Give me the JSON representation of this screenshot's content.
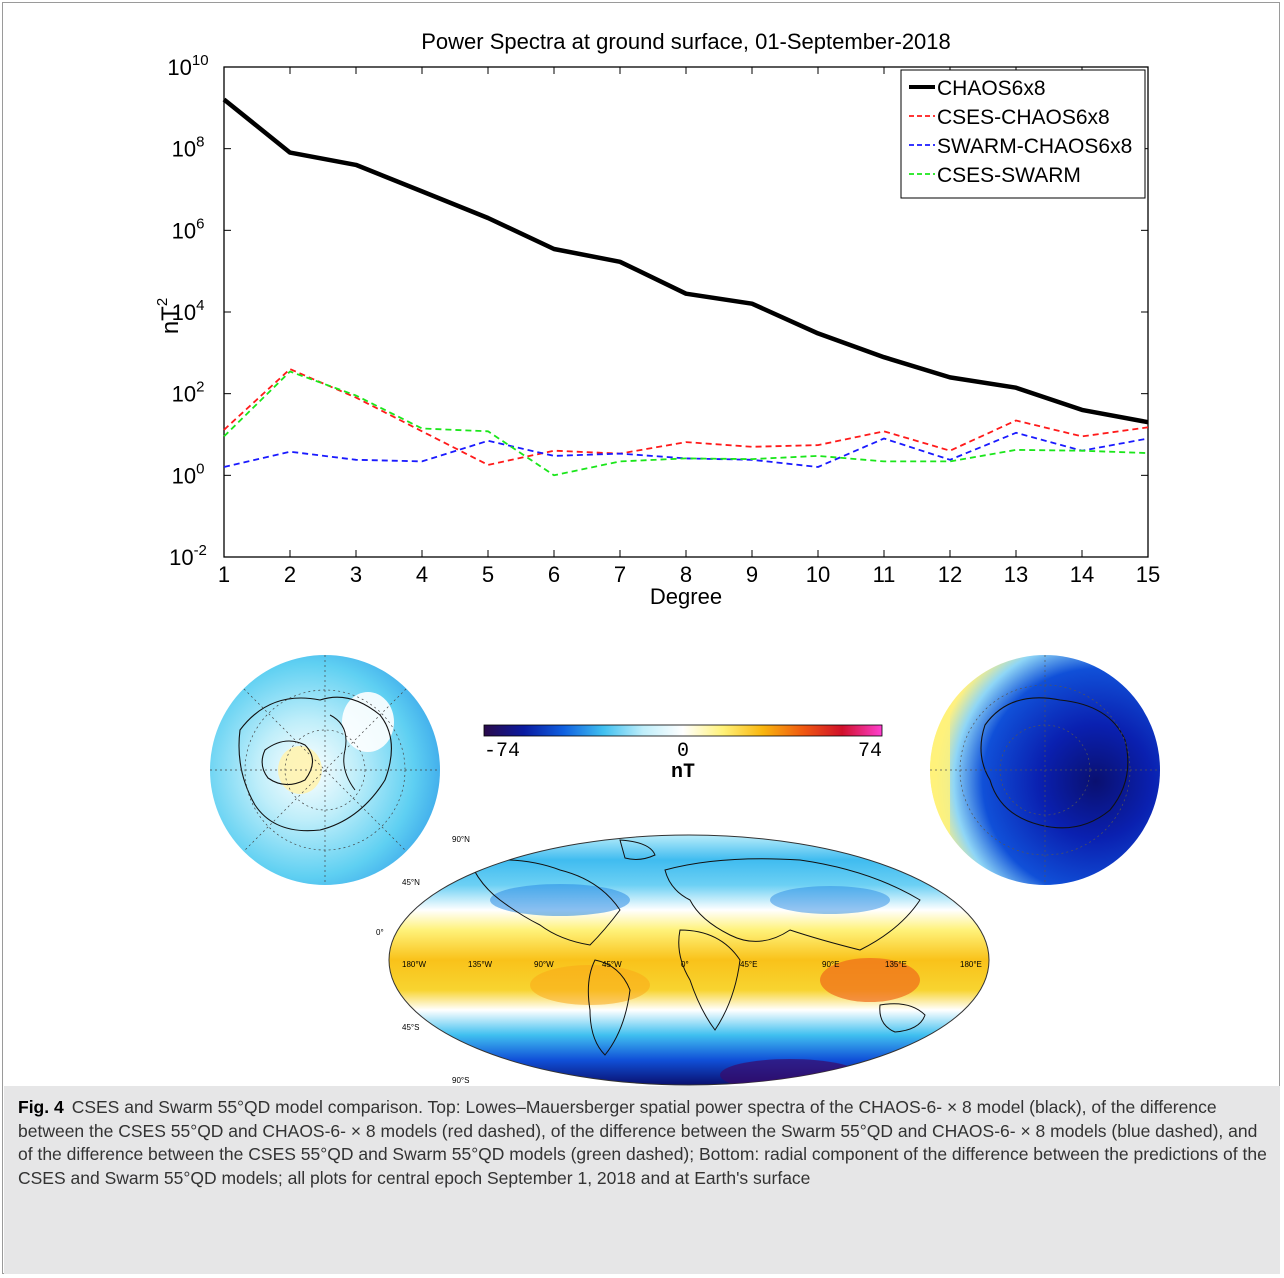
{
  "chart_data": [
    {
      "type": "line",
      "title": "Power Spectra at ground surface, 01-September-2018",
      "xlabel": "Degree",
      "ylabel": "nT",
      "ylabel_sup": "2",
      "y_scale": "log",
      "xlim": [
        1,
        15
      ],
      "ylim": [
        0.01,
        10000000000
      ],
      "x": [
        1,
        2,
        3,
        4,
        5,
        6,
        7,
        8,
        9,
        10,
        11,
        12,
        13,
        14,
        15
      ],
      "x_ticks": [
        "1",
        "2",
        "3",
        "4",
        "5",
        "6",
        "7",
        "8",
        "9",
        "10",
        "11",
        "12",
        "13",
        "14",
        "15"
      ],
      "y_ticks": [
        {
          "base": "10",
          "exp": "-2",
          "value": 0.01
        },
        {
          "base": "10",
          "exp": "0",
          "value": 1
        },
        {
          "base": "10",
          "exp": "2",
          "value": 100
        },
        {
          "base": "10",
          "exp": "4",
          "value": 10000
        },
        {
          "base": "10",
          "exp": "6",
          "value": 1000000
        },
        {
          "base": "10",
          "exp": "8",
          "value": 100000000
        },
        {
          "base": "10",
          "exp": "10",
          "value": 10000000000
        }
      ],
      "legend_position": "top-right",
      "grid": false,
      "series": [
        {
          "name": "CHAOS6x8",
          "color": "#000000",
          "style": "solid",
          "values": [
            1600000000,
            80000000,
            40000000,
            9000000,
            2000000,
            350000,
            170000,
            28000,
            16000,
            3000,
            780,
            250,
            140,
            40,
            20
          ]
        },
        {
          "name": "CSES-CHAOS6x8",
          "color": "#ff1a1a",
          "style": "dashed",
          "values": [
            13,
            400,
            80,
            12,
            1.8,
            4,
            3.4,
            6.5,
            5,
            5.5,
            12,
            4,
            22,
            9,
            15
          ]
        },
        {
          "name": "SWARM-CHAOS6x8",
          "color": "#1a1aff",
          "style": "dashed",
          "values": [
            1.6,
            3.8,
            2.4,
            2.2,
            7,
            3,
            3.4,
            2.6,
            2.4,
            1.6,
            8,
            2.4,
            11,
            4,
            8
          ]
        },
        {
          "name": "CSES-SWARM",
          "color": "#1ae61a",
          "style": "dashed",
          "values": [
            9,
            350,
            90,
            14,
            12,
            1,
            2.2,
            2.6,
            2.5,
            3,
            2.2,
            2.2,
            4.2,
            4,
            3.5
          ]
        }
      ]
    },
    {
      "type": "heatmap",
      "subject": "map",
      "colorbar": {
        "min_label": "-74",
        "mid_label": "0",
        "max_label": "74",
        "unit": "nT"
      },
      "lon_labels": [
        "180°W",
        "135°W",
        "90°W",
        "45°W",
        "0°",
        "45°E",
        "90°E",
        "135°E",
        "180°E"
      ],
      "lat_labels": [
        "90°N",
        "45°N",
        "0°",
        "45°S",
        "90°S"
      ]
    }
  ],
  "caption": {
    "label": "Fig. 4",
    "text": "CSES and Swarm 55°QD model comparison. Top: Lowes–Mauersberger spatial power spectra of the CHAOS-6- × 8 model (black), of the difference between the CSES 55°QD and CHAOS-6- × 8 models (red dashed), of the difference between the Swarm 55°QD and CHAOS-6- × 8 models (blue dashed), and of the difference between the CSES 55°QD and Swarm 55°QD models (green dashed); Bottom: radial component of the difference between the predictions of the CSES and Swarm 55°QD models; all plots for central epoch September 1, 2018 and at Earth's surface"
  },
  "colors": {
    "colorbar_stops": [
      "#2a0a4a",
      "#0a1aa0",
      "#1060e0",
      "#40c0f0",
      "#bfeefa",
      "#ffffff",
      "#fff27a",
      "#f9b60e",
      "#f05a10",
      "#d0102a",
      "#ff3fd0"
    ],
    "ocean_positive": "#f8c41a",
    "ocean_negative": "#1c7be0"
  }
}
